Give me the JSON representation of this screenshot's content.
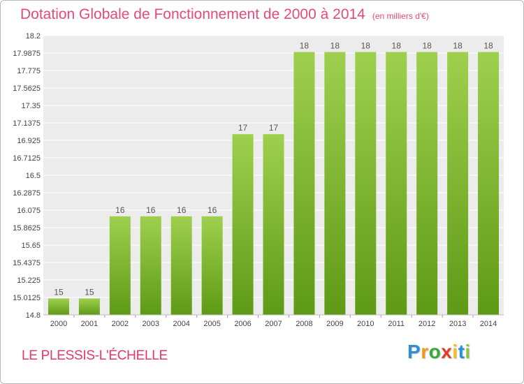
{
  "chart_data": {
    "type": "bar",
    "title": "Dotation Globale de Fonctionnement de 2000 à 2014",
    "unit": "(en milliers d'€)",
    "categories": [
      "2000",
      "2001",
      "2002",
      "2003",
      "2004",
      "2005",
      "2006",
      "2007",
      "2008",
      "2009",
      "2010",
      "2011",
      "2012",
      "2013",
      "2014"
    ],
    "values": [
      15,
      15,
      16,
      16,
      16,
      16,
      17,
      17,
      18,
      18,
      18,
      18,
      18,
      18,
      18
    ],
    "data_labels": [
      "15",
      "15",
      "16",
      "16",
      "16",
      "16",
      "17",
      "17",
      "18",
      "18",
      "18",
      "18",
      "18",
      "18",
      "18"
    ],
    "ylim": [
      14.8,
      18.2
    ],
    "yticks": [
      "14.8",
      "15.0125",
      "15.225",
      "15.4375",
      "15.65",
      "15.8625",
      "16.075",
      "16.2875",
      "16.5",
      "16.7125",
      "16.925",
      "17.1375",
      "17.35",
      "17.5625",
      "17.775",
      "17.9875",
      "18.2"
    ],
    "xlabel": "",
    "ylabel": "",
    "grid": true,
    "colors": {
      "bar_top": "#9ed04e",
      "bar_bottom": "#5e9a16",
      "plot_bg": "#ececec",
      "grid": "#ffffff"
    }
  },
  "commune": "LE PLESSIS-L'ÉCHELLE",
  "logo": {
    "letters": [
      "P",
      "r",
      "o",
      "x",
      "i",
      "t",
      "i"
    ],
    "colors": [
      "#2b8ed6",
      "#f29a19",
      "#3aa935",
      "#e53b2c",
      "#f2c21b",
      "#2b8ed6",
      "#8cc63f"
    ]
  }
}
